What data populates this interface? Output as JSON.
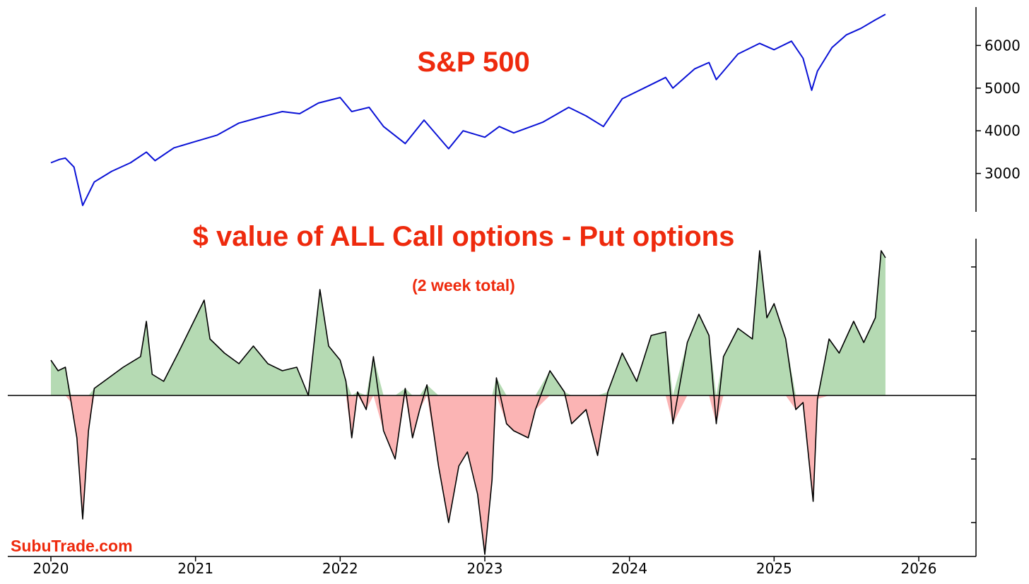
{
  "chart_data": [
    {
      "type": "line",
      "title": "S&P 500",
      "color": "#0a12d6",
      "x_range": [
        2020.0,
        2025.78
      ],
      "ylim": [
        2100,
        6900
      ],
      "y_ticks": [
        "3000",
        "4000",
        "5000",
        "6000"
      ],
      "y_axis_side": "right",
      "grid": false,
      "points": [
        [
          2020.0,
          3250
        ],
        [
          2020.06,
          3330
        ],
        [
          2020.1,
          3360
        ],
        [
          2020.16,
          3150
        ],
        [
          2020.22,
          2250
        ],
        [
          2020.3,
          2800
        ],
        [
          2020.42,
          3050
        ],
        [
          2020.55,
          3250
        ],
        [
          2020.66,
          3500
        ],
        [
          2020.72,
          3300
        ],
        [
          2020.85,
          3600
        ],
        [
          2021.0,
          3750
        ],
        [
          2021.15,
          3900
        ],
        [
          2021.3,
          4180
        ],
        [
          2021.45,
          4320
        ],
        [
          2021.6,
          4450
        ],
        [
          2021.72,
          4400
        ],
        [
          2021.85,
          4650
        ],
        [
          2022.0,
          4780
        ],
        [
          2022.08,
          4450
        ],
        [
          2022.2,
          4550
        ],
        [
          2022.3,
          4100
        ],
        [
          2022.45,
          3700
        ],
        [
          2022.58,
          4250
        ],
        [
          2022.75,
          3580
        ],
        [
          2022.85,
          4000
        ],
        [
          2023.0,
          3850
        ],
        [
          2023.1,
          4100
        ],
        [
          2023.2,
          3950
        ],
        [
          2023.4,
          4200
        ],
        [
          2023.58,
          4550
        ],
        [
          2023.7,
          4350
        ],
        [
          2023.82,
          4100
        ],
        [
          2023.95,
          4750
        ],
        [
          2024.1,
          5000
        ],
        [
          2024.25,
          5250
        ],
        [
          2024.3,
          5000
        ],
        [
          2024.45,
          5450
        ],
        [
          2024.55,
          5600
        ],
        [
          2024.6,
          5200
        ],
        [
          2024.75,
          5800
        ],
        [
          2024.9,
          6050
        ],
        [
          2025.0,
          5900
        ],
        [
          2025.12,
          6100
        ],
        [
          2025.2,
          5700
        ],
        [
          2025.26,
          4950
        ],
        [
          2025.3,
          5400
        ],
        [
          2025.4,
          5950
        ],
        [
          2025.5,
          6250
        ],
        [
          2025.6,
          6400
        ],
        [
          2025.7,
          6600
        ],
        [
          2025.77,
          6730
        ]
      ]
    },
    {
      "type": "area",
      "title": "$ value of ALL Call options - Put options",
      "subtitle": "(2 week total)",
      "line_color": "#000000",
      "positive_fill": "#b5dab3",
      "negative_fill": "#fbb4b4",
      "x_range": [
        2020.0,
        2025.78
      ],
      "x_ticks": [
        "2020",
        "2021",
        "2022",
        "2023",
        "2024",
        "2025",
        "2026"
      ],
      "y_tick_labels_shown": false,
      "zero_line": true,
      "grid": false,
      "points": [
        [
          2020.0,
          50
        ],
        [
          2020.05,
          35
        ],
        [
          2020.1,
          40
        ],
        [
          2020.14,
          -10
        ],
        [
          2020.18,
          -60
        ],
        [
          2020.22,
          -175
        ],
        [
          2020.26,
          -50
        ],
        [
          2020.3,
          10
        ],
        [
          2020.4,
          25
        ],
        [
          2020.5,
          40
        ],
        [
          2020.62,
          55
        ],
        [
          2020.66,
          105
        ],
        [
          2020.7,
          30
        ],
        [
          2020.78,
          20
        ],
        [
          2020.88,
          60
        ],
        [
          2021.0,
          110
        ],
        [
          2021.06,
          135
        ],
        [
          2021.1,
          80
        ],
        [
          2021.2,
          60
        ],
        [
          2021.3,
          45
        ],
        [
          2021.4,
          70
        ],
        [
          2021.5,
          45
        ],
        [
          2021.6,
          35
        ],
        [
          2021.7,
          40
        ],
        [
          2021.78,
          0
        ],
        [
          2021.86,
          150
        ],
        [
          2021.92,
          70
        ],
        [
          2022.0,
          50
        ],
        [
          2022.04,
          20
        ],
        [
          2022.08,
          -60
        ],
        [
          2022.12,
          5
        ],
        [
          2022.18,
          -20
        ],
        [
          2022.23,
          55
        ],
        [
          2022.3,
          -50
        ],
        [
          2022.38,
          -90
        ],
        [
          2022.45,
          10
        ],
        [
          2022.5,
          -60
        ],
        [
          2022.55,
          -20
        ],
        [
          2022.6,
          15
        ],
        [
          2022.68,
          -100
        ],
        [
          2022.75,
          -180
        ],
        [
          2022.82,
          -100
        ],
        [
          2022.88,
          -80
        ],
        [
          2022.95,
          -140
        ],
        [
          2023.0,
          -225
        ],
        [
          2023.05,
          -120
        ],
        [
          2023.08,
          25
        ],
        [
          2023.15,
          -40
        ],
        [
          2023.2,
          -50
        ],
        [
          2023.3,
          -60
        ],
        [
          2023.35,
          -20
        ],
        [
          2023.45,
          35
        ],
        [
          2023.55,
          5
        ],
        [
          2023.6,
          -40
        ],
        [
          2023.7,
          -20
        ],
        [
          2023.78,
          -85
        ],
        [
          2023.85,
          5
        ],
        [
          2023.95,
          60
        ],
        [
          2024.05,
          20
        ],
        [
          2024.15,
          85
        ],
        [
          2024.25,
          90
        ],
        [
          2024.3,
          -40
        ],
        [
          2024.4,
          75
        ],
        [
          2024.48,
          115
        ],
        [
          2024.55,
          85
        ],
        [
          2024.6,
          -40
        ],
        [
          2024.65,
          55
        ],
        [
          2024.75,
          95
        ],
        [
          2024.85,
          80
        ],
        [
          2024.9,
          205
        ],
        [
          2024.95,
          110
        ],
        [
          2025.0,
          130
        ],
        [
          2025.08,
          80
        ],
        [
          2025.15,
          -20
        ],
        [
          2025.2,
          -10
        ],
        [
          2025.27,
          -150
        ],
        [
          2025.3,
          -5
        ],
        [
          2025.38,
          80
        ],
        [
          2025.45,
          60
        ],
        [
          2025.55,
          105
        ],
        [
          2025.62,
          75
        ],
        [
          2025.7,
          110
        ],
        [
          2025.74,
          205
        ],
        [
          2025.77,
          195
        ]
      ]
    }
  ],
  "brand": "SubuTrade.com"
}
